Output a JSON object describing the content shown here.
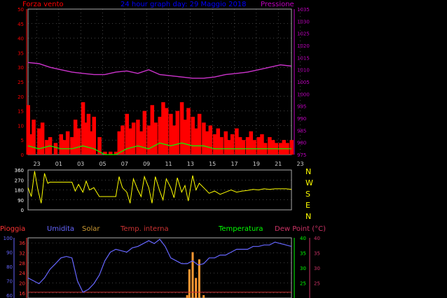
{
  "header": {
    "left_label": "Forza vento",
    "title": "24 hour graph day: 29 Maggio 2018",
    "right_label": "Pressione"
  },
  "colors": {
    "wind_axis": "#ff0000",
    "pressure_axis": "#c000c0",
    "title": "#0000ff",
    "gust": "#ff0000",
    "wind_avg": "#00ff00",
    "wind_white": "#ffffff",
    "pressure": "#cc33cc",
    "direction": "#ffff00",
    "compass": "#ffff00",
    "rain": "#ff3333",
    "humidity": "#6666ff",
    "solar": "#ff9933",
    "temp_int": "#cc3333",
    "temperature": "#00ff00",
    "dewpoint": "#cc3366",
    "grid": "#888888"
  },
  "compass": [
    "N",
    "W",
    "S",
    "E",
    "N"
  ],
  "bottom_legend": {
    "rain": "Pioggia",
    "humidity": "Umidita",
    "solar": "Solar",
    "temp_int": "Temp. interna",
    "temperature": "Temperatura",
    "dewpoint": "Dew Point (°C)"
  },
  "chart_data": [
    {
      "type": "line",
      "name": "wind_pressure",
      "x_ticks": [
        "23",
        "01",
        "03",
        "05",
        "07",
        "09",
        "11",
        "13",
        "15",
        "17",
        "19",
        "21",
        "23"
      ],
      "y_left": {
        "label": "Forza vento",
        "ticks": [
          0,
          5,
          10,
          15,
          20,
          25,
          30,
          35,
          40,
          45,
          50
        ],
        "range": [
          0,
          50
        ]
      },
      "y_right": {
        "label": "Pressione",
        "ticks": [
          975,
          980,
          985,
          990,
          995,
          1000,
          1005,
          1010,
          1015,
          1020,
          1025,
          1030,
          1035
        ],
        "range": [
          975,
          1035
        ]
      },
      "series": [
        {
          "key": "pressure",
          "axis": "right",
          "x": [
            0,
            1,
            2,
            3,
            4,
            5,
            6,
            7,
            8,
            9,
            10,
            11,
            12,
            13,
            14,
            15,
            16,
            17,
            18,
            19,
            20,
            21,
            22,
            23,
            24
          ],
          "values": [
            1013,
            1012.5,
            1011,
            1010,
            1009,
            1008.5,
            1008,
            1008,
            1009,
            1009.5,
            1008.5,
            1010,
            1008,
            1007.5,
            1007,
            1006.5,
            1006.5,
            1007,
            1008,
            1008.5,
            1009,
            1010,
            1011,
            1012,
            1011.5
          ]
        },
        {
          "key": "gust",
          "axis": "left",
          "x": [
            0,
            0.2,
            0.5,
            1,
            1.3,
            1.7,
            2,
            2.5,
            3,
            3.3,
            3.6,
            4,
            4.3,
            4.6,
            5,
            5.2,
            5.5,
            5.8,
            6,
            6.5,
            7,
            7.5,
            8,
            8.3,
            8.6,
            9,
            9.3,
            9.6,
            10,
            10.3,
            10.6,
            11,
            11.3,
            11.6,
            12,
            12.3,
            12.6,
            13,
            13.3,
            13.6,
            14,
            14.3,
            14.6,
            15,
            15.3,
            15.6,
            16,
            16.3,
            16.6,
            17,
            17.3,
            17.6,
            18,
            18.3,
            18.6,
            19,
            19.3,
            19.6,
            20,
            20.3,
            20.6,
            21,
            21.3,
            21.6,
            22,
            22.3,
            22.6,
            23,
            23.3,
            23.6,
            24
          ],
          "values": [
            17,
            7,
            12,
            9,
            11,
            5,
            6,
            4,
            7,
            5,
            8,
            6,
            12,
            9,
            18,
            11,
            14,
            8,
            13,
            6,
            1,
            1,
            1,
            8,
            10,
            14,
            9,
            11,
            12,
            8,
            15,
            10,
            17,
            11,
            13,
            18,
            16,
            14,
            10,
            15,
            18,
            12,
            16,
            13,
            9,
            14,
            11,
            8,
            10,
            7,
            9,
            6,
            8,
            5,
            7,
            9,
            6,
            5,
            6,
            8,
            5,
            6,
            7,
            4,
            6,
            5,
            4,
            4,
            5,
            4,
            5
          ]
        },
        {
          "key": "wind_avg",
          "axis": "left",
          "x": [
            0,
            1,
            2,
            3,
            4,
            5,
            6,
            7,
            8,
            9,
            10,
            11,
            12,
            13,
            14,
            15,
            16,
            17,
            18,
            19,
            20,
            21,
            22,
            23,
            24
          ],
          "values": [
            3,
            2,
            3,
            2,
            2,
            3,
            2,
            0,
            0,
            2,
            3,
            2,
            4,
            3,
            4,
            3,
            3,
            2,
            2,
            2,
            2,
            2,
            2,
            2,
            2
          ]
        }
      ]
    },
    {
      "type": "line",
      "name": "wind_direction",
      "y_left": {
        "ticks": [
          0,
          90,
          180,
          270,
          360
        ],
        "range": [
          0,
          360
        ]
      },
      "series": [
        {
          "key": "direction",
          "x": [
            0,
            0.3,
            0.6,
            0.9,
            1.2,
            1.5,
            1.8,
            2,
            2.5,
            3,
            3.5,
            4,
            4.3,
            4.6,
            5,
            5.3,
            5.6,
            6,
            6.5,
            7,
            7.5,
            8,
            8.3,
            8.6,
            9,
            9.3,
            9.6,
            10,
            10.3,
            10.6,
            11,
            11.3,
            11.6,
            12,
            12.3,
            12.6,
            13,
            13.3,
            13.6,
            14,
            14.3,
            14.6,
            15,
            15.3,
            15.6,
            16,
            16.5,
            17,
            17.5,
            18,
            18.5,
            19,
            19.5,
            20,
            20.5,
            21,
            21.5,
            22,
            22.5,
            23,
            23.5,
            24
          ],
          "values": [
            200,
            120,
            350,
            180,
            60,
            330,
            240,
            250,
            250,
            250,
            250,
            250,
            170,
            230,
            160,
            260,
            180,
            200,
            120,
            120,
            120,
            120,
            300,
            200,
            160,
            60,
            280,
            180,
            120,
            300,
            200,
            60,
            300,
            170,
            90,
            280,
            200,
            110,
            290,
            160,
            220,
            80,
            310,
            180,
            240,
            200,
            150,
            170,
            140,
            160,
            180,
            160,
            170,
            175,
            185,
            180,
            190,
            185,
            190,
            190,
            190,
            185
          ]
        }
      ]
    },
    {
      "type": "line",
      "name": "humidity_temperature",
      "y_left_humidity": {
        "label": "Umidita",
        "ticks": [
          60,
          70,
          80,
          90,
          100
        ]
      },
      "y_left_rain": {
        "label": "Pioggia",
        "ticks": [
          16,
          20,
          24,
          28,
          32,
          36
        ]
      },
      "y_right_temp": {
        "label": "Temperatura",
        "ticks": [
          25,
          30,
          35,
          40
        ]
      },
      "y_right_dew": {
        "label": "Dew Point (°C)",
        "ticks": [
          25,
          30,
          35,
          40
        ]
      },
      "series": [
        {
          "key": "humidity",
          "x": [
            0,
            0.5,
            1,
            1.5,
            2,
            2.5,
            3,
            3.5,
            4,
            4.5,
            5,
            5.5,
            6,
            6.5,
            7,
            7.5,
            8,
            8.5,
            9,
            9.5,
            10,
            10.5,
            11,
            11.5,
            12,
            12.5,
            13,
            13.5,
            14,
            14.5,
            15,
            15.5,
            16,
            16.5,
            17,
            17.5,
            18,
            18.5,
            19,
            19.5,
            20,
            20.5,
            21,
            21.5,
            22,
            22.5,
            23,
            23.5,
            24
          ],
          "values": [
            72,
            70,
            68,
            72,
            78,
            82,
            86,
            87,
            86,
            70,
            62,
            64,
            68,
            74,
            84,
            90,
            92,
            91,
            90,
            93,
            94,
            96,
            98,
            96,
            99,
            94,
            86,
            84,
            82,
            82,
            84,
            81,
            82,
            86,
            86,
            88,
            88,
            90,
            92,
            92,
            92,
            94,
            94,
            95,
            95,
            97,
            96,
            95,
            94
          ]
        },
        {
          "key": "temp_int",
          "x": [
            0,
            24
          ],
          "values": [
            62,
            62
          ]
        },
        {
          "key": "solar",
          "x": [
            14.5,
            14.7,
            15,
            15.3,
            15.6,
            16
          ],
          "values": [
            60,
            78,
            90,
            72,
            85,
            60
          ]
        }
      ]
    }
  ]
}
